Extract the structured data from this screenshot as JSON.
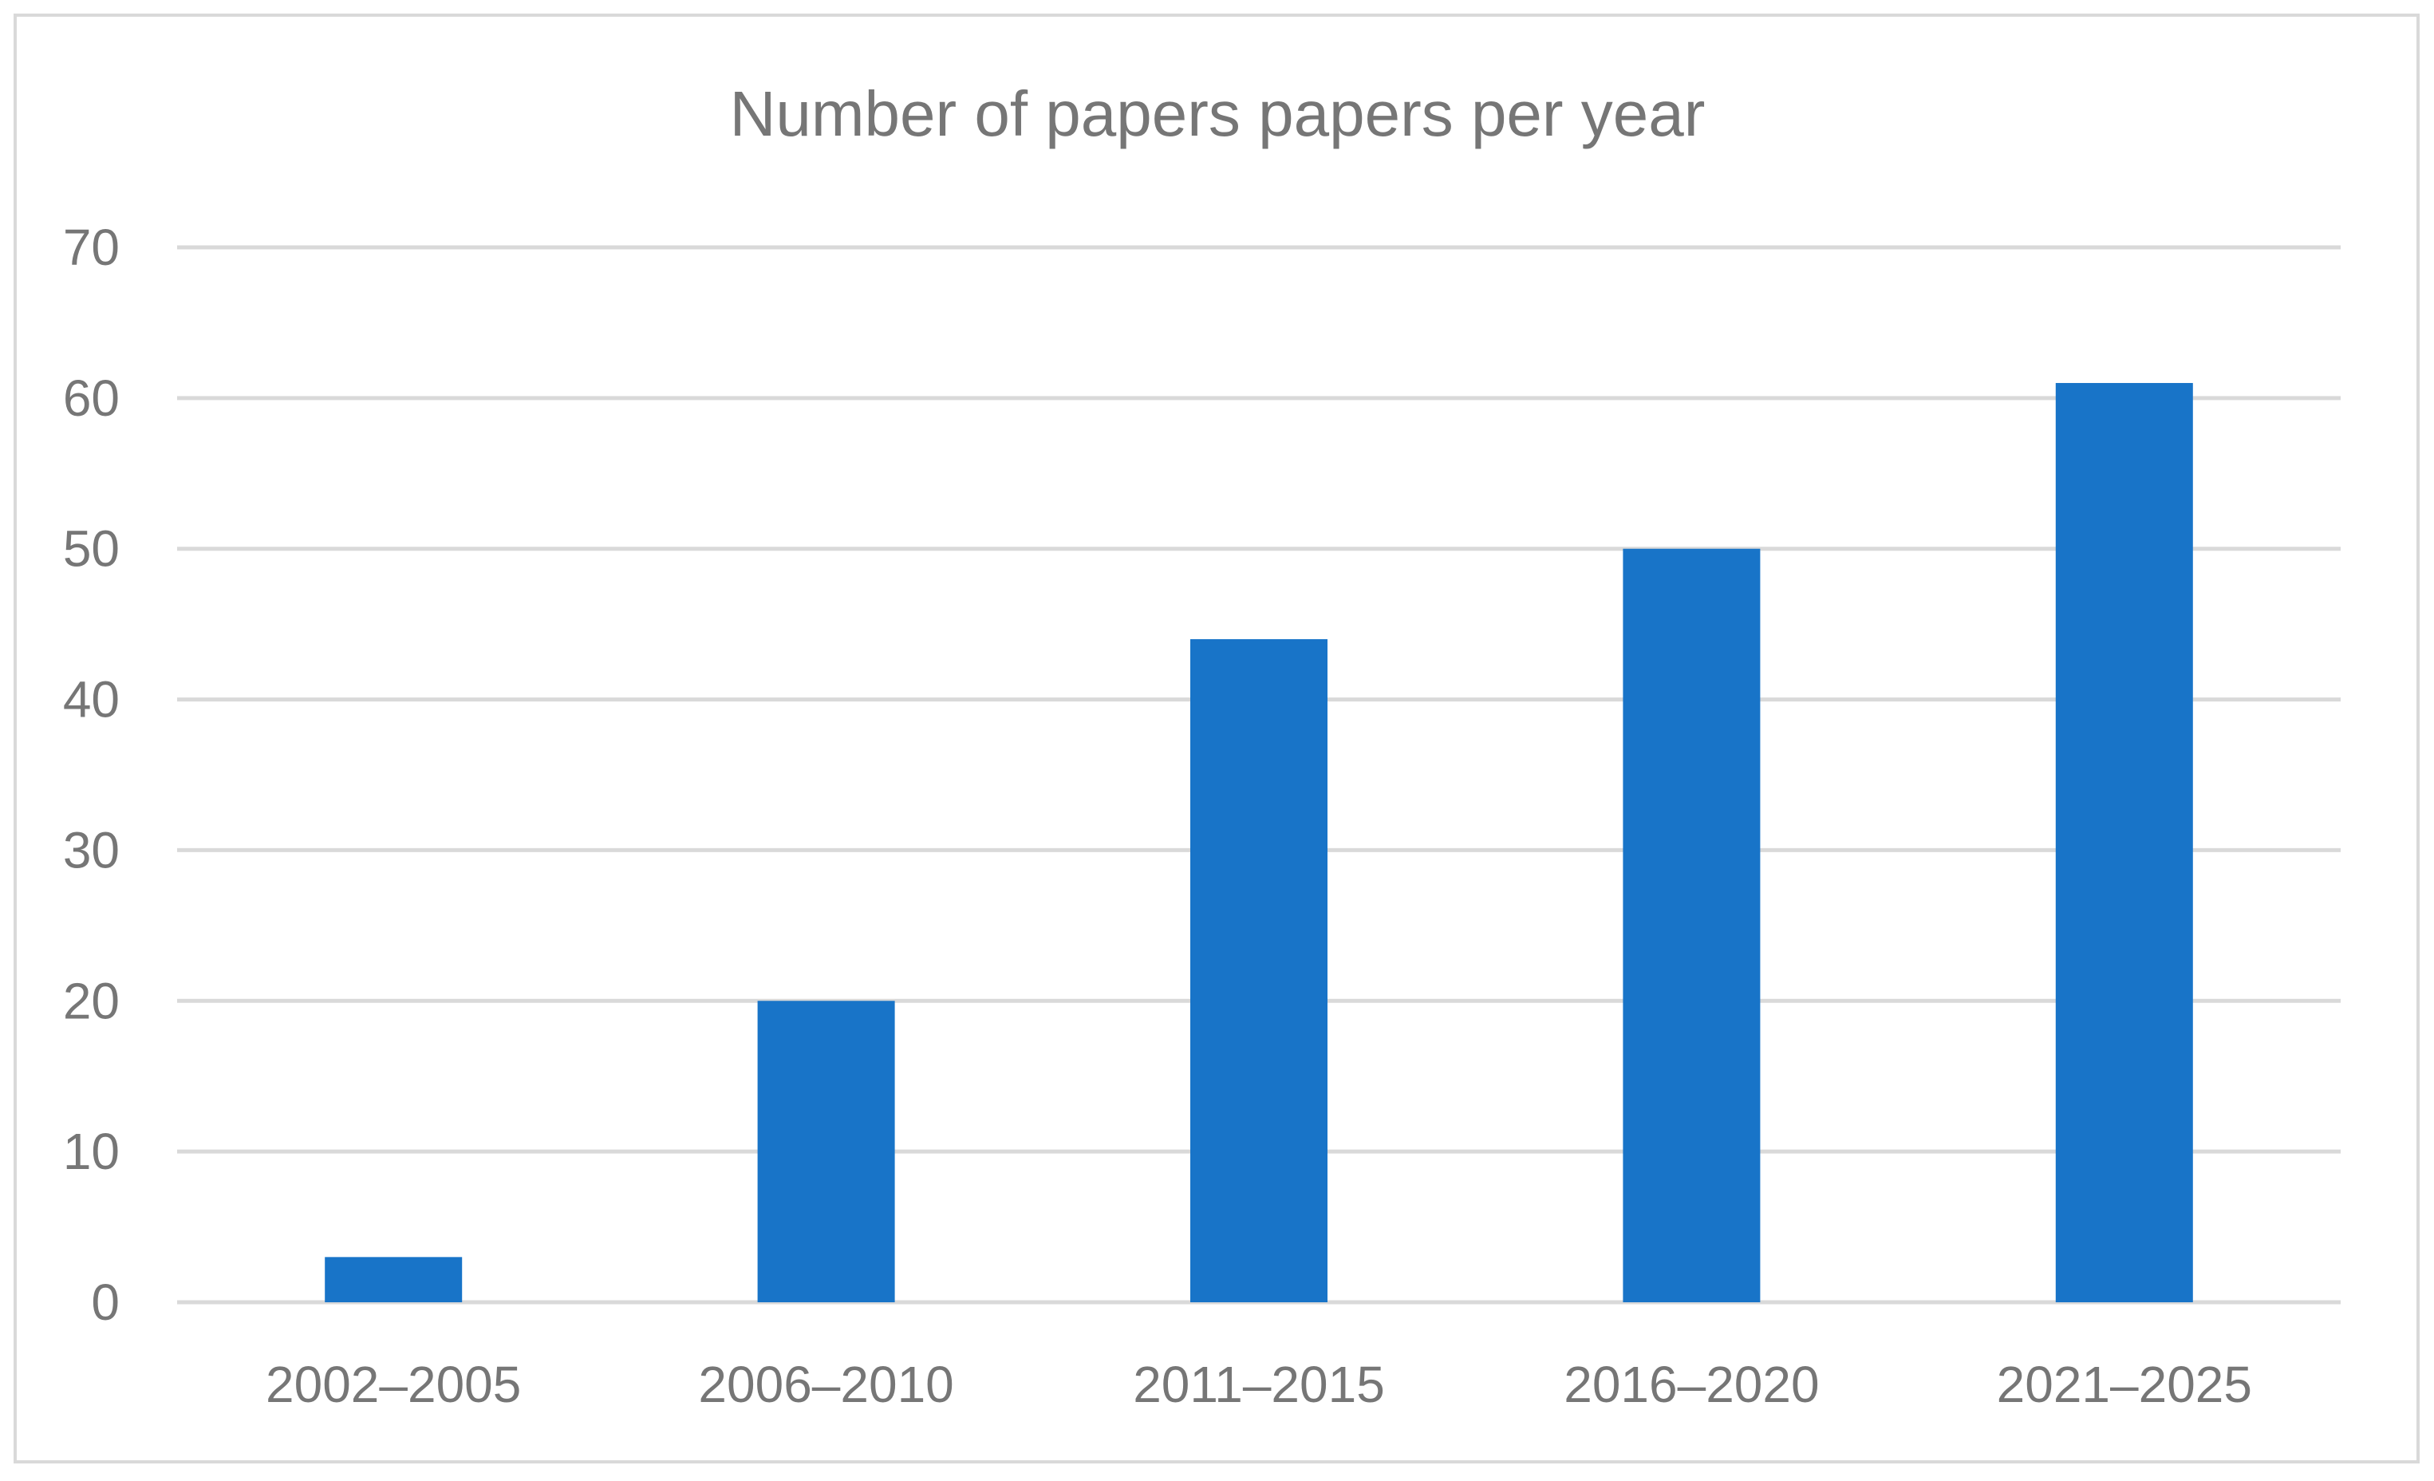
{
  "chart_data": {
    "type": "bar",
    "title": "Number of papers papers per year",
    "xlabel": "",
    "ylabel": "",
    "categories": [
      "2002–2005",
      "2006–2010",
      "2011–2015",
      "2016–2020",
      "2021–2025"
    ],
    "values": [
      3,
      20,
      44,
      50,
      61
    ],
    "ylim": [
      0,
      70
    ],
    "yticks": [
      0,
      10,
      20,
      30,
      40,
      50,
      60,
      70
    ],
    "grid": true,
    "legend": "none",
    "bar_color": "#1874C8",
    "text_color": "#767676",
    "grid_color": "#D9D9D9",
    "border_color": "#D9D9D9"
  }
}
